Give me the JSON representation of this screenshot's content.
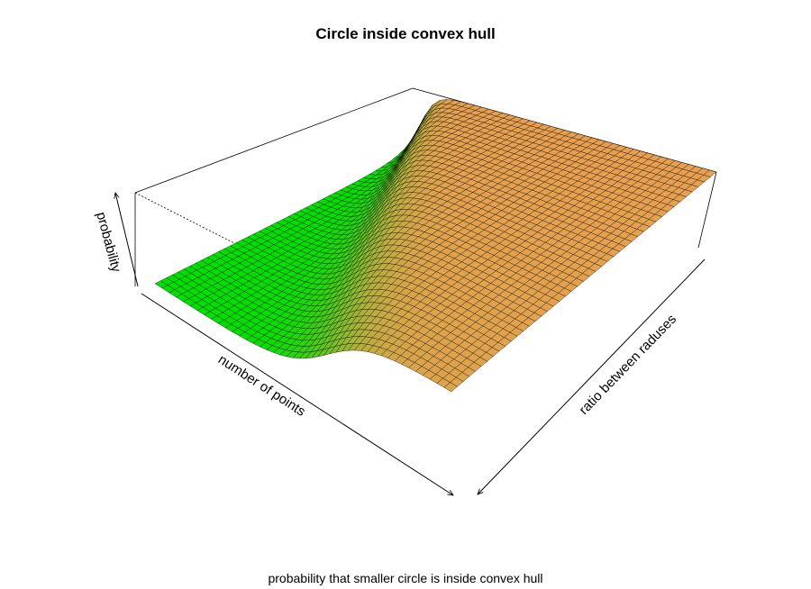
{
  "title": "Circle inside convex hull",
  "subtitle": "probability that smaller circle is inside convex hull",
  "chart_data": {
    "type": "surface",
    "xlabel": "number of points",
    "ylabel": "ratio between raduses",
    "zlabel": "probability",
    "colors": {
      "low": "#00e000",
      "high": "#e8a050",
      "mesh": "#000000",
      "box": "#000000"
    }
  }
}
